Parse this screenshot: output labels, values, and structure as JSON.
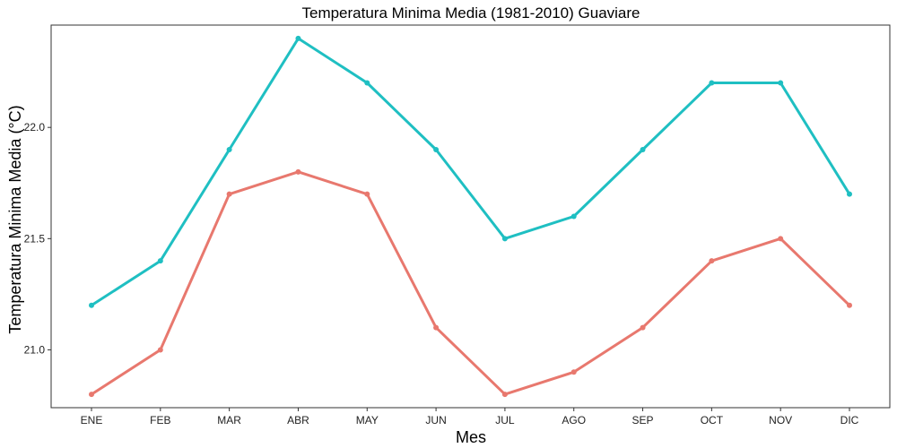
{
  "chart_data": {
    "type": "line",
    "title": "Temperatura Minima Media (1981-2010)  Guaviare",
    "xlabel": "Mes",
    "ylabel": "Temperatura Minima Media  (°C)",
    "categories": [
      "ENE",
      "FEB",
      "MAR",
      "ABR",
      "MAY",
      "JUN",
      "JUL",
      "AGO",
      "SEP",
      "OCT",
      "NOV",
      "DIC"
    ],
    "ylim": [
      20.74,
      22.46
    ],
    "yticks": [
      21.0,
      21.5,
      22.0
    ],
    "ytick_labels": [
      "21.0",
      "21.5",
      "22.0"
    ],
    "grid": false,
    "legend": "none",
    "series": [
      {
        "color": "#1fbfc2",
        "values": [
          21.2,
          21.4,
          21.9,
          22.4,
          22.2,
          21.9,
          21.5,
          21.6,
          21.9,
          22.2,
          22.2,
          21.7
        ]
      },
      {
        "color": "#e8786e",
        "values": [
          20.8,
          21.0,
          21.7,
          21.8,
          21.7,
          21.1,
          20.8,
          20.9,
          21.1,
          21.4,
          21.5,
          21.2
        ]
      }
    ]
  }
}
